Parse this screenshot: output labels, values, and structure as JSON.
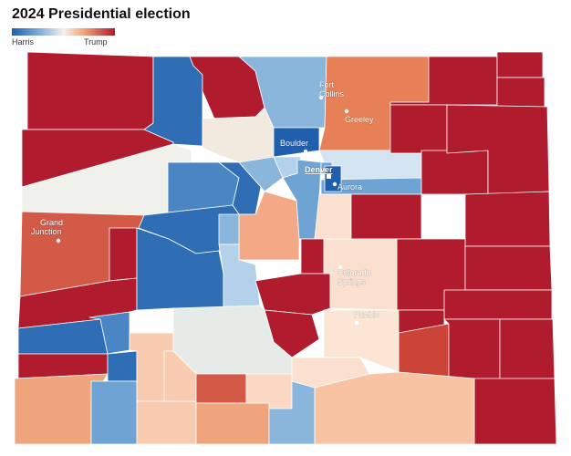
{
  "title": "2024 Presidential election",
  "legend": {
    "left": "Harris",
    "right": "Trump",
    "colors": [
      "#1f5fad",
      "#f3f0ea",
      "#b01c2e"
    ]
  },
  "cities": [
    {
      "name": "Fort Collins"
    },
    {
      "name": "Greeley"
    },
    {
      "name": "Boulder"
    },
    {
      "name": "Denver"
    },
    {
      "name": "Aurora"
    },
    {
      "name": "Grand Junction"
    },
    {
      "name": "Colorado Springs"
    },
    {
      "name": "Pueblo"
    }
  ]
}
